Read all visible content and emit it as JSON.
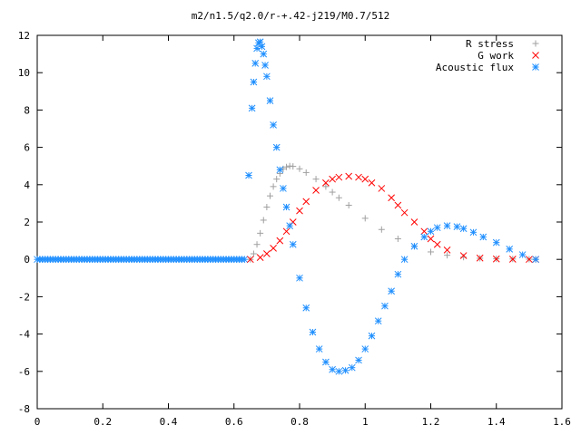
{
  "chart_data": {
    "type": "scatter",
    "title": "m2/n1.5/q2.0/r-+.42-j219/M0.7/512",
    "xlabel": "",
    "ylabel": "",
    "xlim": [
      0,
      1.6
    ],
    "ylim": [
      -8,
      12
    ],
    "x_ticks": [
      "0",
      "0.2",
      "0.4",
      "0.6",
      "0.8",
      "1",
      "1.2",
      "1.4",
      "1.6"
    ],
    "y_ticks": [
      "-8",
      "-6",
      "-4",
      "-2",
      "0",
      "2",
      "4",
      "6",
      "8",
      "10",
      "12"
    ],
    "grid": false,
    "legend_position": "top-right",
    "series": [
      {
        "name": "R stress",
        "marker": "plus",
        "color": "#a0a0a0",
        "x": [
          0.65,
          0.66,
          0.67,
          0.68,
          0.69,
          0.7,
          0.71,
          0.72,
          0.73,
          0.74,
          0.75,
          0.76,
          0.77,
          0.78,
          0.8,
          0.82,
          0.85,
          0.88,
          0.9,
          0.92,
          0.95,
          1.0,
          1.05,
          1.1,
          1.15,
          1.2,
          1.25,
          1.3,
          1.35,
          1.4,
          1.45,
          1.5,
          1.52
        ],
        "y": [
          0.0,
          0.3,
          0.8,
          1.4,
          2.1,
          2.8,
          3.4,
          3.9,
          4.3,
          4.6,
          4.85,
          4.95,
          5.0,
          4.98,
          4.85,
          4.65,
          4.3,
          3.9,
          3.6,
          3.3,
          2.9,
          2.2,
          1.6,
          1.1,
          0.7,
          0.4,
          0.22,
          0.12,
          0.06,
          0.03,
          0.02,
          0.01,
          0.0
        ]
      },
      {
        "name": "G work",
        "marker": "x",
        "color": "#ff0000",
        "x": [
          0.65,
          0.68,
          0.7,
          0.72,
          0.74,
          0.76,
          0.78,
          0.8,
          0.82,
          0.85,
          0.88,
          0.9,
          0.92,
          0.95,
          0.98,
          1.0,
          1.02,
          1.05,
          1.08,
          1.1,
          1.12,
          1.15,
          1.18,
          1.2,
          1.22,
          1.25,
          1.3,
          1.35,
          1.4,
          1.45,
          1.5,
          1.52
        ],
        "y": [
          0.0,
          0.1,
          0.3,
          0.6,
          1.0,
          1.5,
          2.0,
          2.6,
          3.1,
          3.7,
          4.1,
          4.3,
          4.4,
          4.45,
          4.4,
          4.3,
          4.1,
          3.8,
          3.3,
          2.9,
          2.5,
          2.0,
          1.5,
          1.1,
          0.8,
          0.5,
          0.2,
          0.07,
          0.02,
          0.01,
          0.0,
          0.0
        ]
      },
      {
        "name": "Acoustic flux",
        "marker": "star",
        "color": "#1f8fff",
        "x": [
          0.645,
          0.655,
          0.66,
          0.665,
          0.67,
          0.675,
          0.68,
          0.685,
          0.69,
          0.695,
          0.7,
          0.71,
          0.72,
          0.73,
          0.74,
          0.75,
          0.76,
          0.77,
          0.78,
          0.8,
          0.82,
          0.84,
          0.86,
          0.88,
          0.9,
          0.92,
          0.94,
          0.96,
          0.98,
          1.0,
          1.02,
          1.04,
          1.06,
          1.08,
          1.1,
          1.12,
          1.15,
          1.18,
          1.2,
          1.22,
          1.25,
          1.28,
          1.3,
          1.33,
          1.36,
          1.4,
          1.44,
          1.48,
          1.52
        ],
        "y": [
          4.5,
          8.1,
          9.5,
          10.5,
          11.3,
          11.6,
          11.65,
          11.4,
          11.0,
          10.4,
          9.8,
          8.5,
          7.2,
          6.0,
          4.8,
          3.8,
          2.8,
          1.8,
          0.8,
          -1.0,
          -2.6,
          -3.9,
          -4.8,
          -5.5,
          -5.9,
          -6.0,
          -5.95,
          -5.8,
          -5.4,
          -4.8,
          -4.1,
          -3.3,
          -2.5,
          -1.7,
          -0.8,
          0.0,
          0.7,
          1.2,
          1.5,
          1.7,
          1.8,
          1.75,
          1.65,
          1.45,
          1.2,
          0.9,
          0.55,
          0.25,
          0.0
        ]
      }
    ]
  }
}
